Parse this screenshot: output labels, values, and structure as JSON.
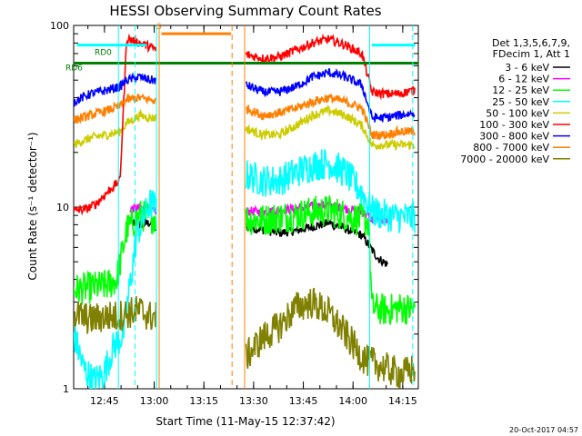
{
  "chart_data": {
    "type": "line",
    "title": "HESSI Observing Summary Count Rates",
    "xlabel": "Start Time (11-May-15 12:37:42)",
    "ylabel": "Count Rate (s⁻¹ detector⁻¹)",
    "yscale": "log",
    "ylim": [
      1,
      100
    ],
    "xlim_minutes": [
      -2,
      102
    ],
    "x_tick_labels": [
      "12:45",
      "13:00",
      "13:15",
      "13:30",
      "13:45",
      "14:00",
      "14:15"
    ],
    "y_tick_labels": [
      "1",
      "10",
      "100"
    ],
    "legend_header": [
      "Det 1,3,5,6,7,9,",
      "FDecim 1, Att 1"
    ],
    "legend_placement": "right",
    "date_stamp": "20-Oct-2017 04:57",
    "data_gaps_minutes": [
      [
        31,
        42
      ]
    ],
    "markers": [
      {
        "label": "RD6",
        "color": "#007f00",
        "y": 62
      },
      {
        "label": "RD0",
        "color": "#007f00",
        "y": 68
      },
      {
        "label": "S",
        "color": "#ff7f00",
        "y": 90
      }
    ],
    "vlines": [
      {
        "x": 23.0,
        "color": "#00ffff",
        "style": "solid"
      },
      {
        "x": 23.8,
        "color": "#ff7f00",
        "style": "solid"
      },
      {
        "x": 45.8,
        "color": "#ff7f00",
        "style": "dashed"
      },
      {
        "x": 49.6,
        "color": "#ff7f00",
        "style": "solid"
      },
      {
        "x": 87.3,
        "color": "#00ffff",
        "style": "solid"
      },
      {
        "x": 100.3,
        "color": "#00ffff",
        "style": "dashed"
      },
      {
        "x": 16.5,
        "color": "#00ffff",
        "style": "dashed"
      },
      {
        "x": 11.5,
        "color": "#00ffff",
        "style": "solid"
      }
    ],
    "hbars": [
      {
        "x0": -2,
        "x1": 102,
        "y": 62,
        "color": "#007f00"
      },
      {
        "x0": 24.5,
        "x1": 45.5,
        "y": 90,
        "color": "#ff7f00"
      },
      {
        "x0": -1,
        "x1": 20,
        "y": 78,
        "color": "#00ffff"
      },
      {
        "x0": 88,
        "x1": 101,
        "y": 78,
        "color": "#00ffff"
      }
    ],
    "series": [
      {
        "name": "3 - 6 keV",
        "color": "#000000",
        "x": [
          15,
          18,
          21,
          23,
          50,
          55,
          60,
          65,
          70,
          75,
          80,
          85,
          87,
          88,
          90,
          93
        ],
        "y": [
          8.3,
          8.0,
          8.2,
          7.5,
          7.8,
          7.5,
          7.2,
          7.4,
          7.8,
          8.2,
          7.6,
          7.0,
          6.2,
          5.8,
          5.2,
          4.8
        ]
      },
      {
        "name": "6 - 12 keV",
        "color": "#ff00ff",
        "x": [
          15,
          18,
          21,
          23,
          50,
          55,
          60,
          65,
          70,
          75,
          80,
          85,
          87,
          88,
          90,
          93
        ],
        "y": [
          9.8,
          9.9,
          9.6,
          9.5,
          9.5,
          9.4,
          9.6,
          9.8,
          10.1,
          10.3,
          9.8,
          9.4,
          9.0,
          8.5,
          8.5,
          8.5
        ]
      },
      {
        "name": "12 - 25 keV",
        "color": "#00ff00",
        "x": [
          -2,
          3,
          8,
          11,
          14,
          18,
          21,
          23,
          50,
          55,
          60,
          65,
          70,
          75,
          80,
          85,
          87,
          88,
          92,
          97,
          101
        ],
        "y": [
          3.5,
          3.6,
          3.7,
          4.0,
          7.5,
          9.0,
          8.8,
          8.8,
          8.6,
          8.5,
          8.8,
          9.0,
          9.4,
          9.6,
          9.0,
          8.5,
          8.3,
          2.8,
          2.7,
          2.8,
          2.7
        ]
      },
      {
        "name": "25 - 50 keV",
        "color": "#00ffff",
        "x": [
          -2,
          1,
          4,
          7,
          10,
          13,
          17,
          21,
          23,
          50,
          55,
          60,
          65,
          70,
          75,
          80,
          85,
          88,
          92,
          96,
          101
        ],
        "y": [
          2.0,
          1.3,
          1.1,
          1.2,
          1.7,
          2.0,
          7.0,
          10.5,
          10.0,
          15,
          14,
          14,
          15.5,
          17,
          17.5,
          15.5,
          12,
          9.5,
          9.0,
          8.8,
          8.8
        ]
      },
      {
        "name": "50 - 100 keV",
        "color": "#cccc00",
        "x": [
          -2,
          3,
          8,
          12,
          14,
          18,
          21,
          23,
          50,
          55,
          60,
          65,
          70,
          75,
          80,
          85,
          88,
          92,
          96,
          101
        ],
        "y": [
          22,
          24,
          25,
          26,
          29,
          32,
          31,
          31,
          27,
          25,
          25,
          28,
          32,
          34,
          32,
          28,
          22,
          22,
          22,
          22
        ]
      },
      {
        "name": "100 - 300 keV",
        "color": "#ff0000",
        "x": [
          -2,
          2,
          5,
          8,
          10,
          12,
          14,
          18,
          22,
          23,
          50,
          55,
          60,
          65,
          70,
          75,
          80,
          85,
          88,
          92,
          96,
          101
        ],
        "y": [
          9.5,
          9.8,
          10.5,
          12,
          13,
          14,
          85,
          80,
          75,
          73,
          69,
          66,
          67,
          73,
          80,
          84,
          78,
          70,
          43,
          42,
          42,
          44
        ]
      },
      {
        "name": "300 - 800 keV",
        "color": "#0000ff",
        "x": [
          -2,
          3,
          8,
          12,
          14,
          18,
          21,
          23,
          50,
          55,
          60,
          65,
          70,
          75,
          80,
          85,
          88,
          92,
          96,
          101
        ],
        "y": [
          38,
          42,
          44,
          46,
          50,
          52,
          50,
          50,
          47,
          43,
          43,
          46,
          52,
          55,
          52,
          47,
          31,
          31,
          32,
          33
        ]
      },
      {
        "name": "800 - 7000 keV",
        "color": "#ff7f00",
        "x": [
          -2,
          3,
          8,
          12,
          14,
          18,
          21,
          23,
          50,
          55,
          60,
          65,
          70,
          75,
          80,
          85,
          88,
          92,
          96,
          101
        ],
        "y": [
          30,
          32,
          34,
          36,
          39,
          40,
          39,
          38,
          35,
          32,
          33,
          35,
          38,
          40,
          38,
          35,
          25,
          25,
          26,
          26
        ]
      },
      {
        "name": "7000 - 20000 keV",
        "color": "#808000",
        "x": [
          -2,
          3,
          8,
          11,
          14,
          18,
          21,
          23,
          50,
          55,
          60,
          65,
          70,
          75,
          80,
          85,
          87,
          88,
          92,
          97,
          101
        ],
        "y": [
          2.6,
          2.4,
          2.5,
          2.5,
          2.6,
          2.7,
          2.5,
          2.5,
          1.5,
          1.9,
          2.2,
          2.8,
          3.0,
          2.6,
          2.0,
          1.5,
          1.4,
          1.4,
          1.3,
          1.2,
          1.3
        ]
      }
    ]
  }
}
